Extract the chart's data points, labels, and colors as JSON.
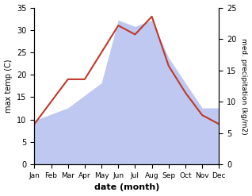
{
  "months": [
    "Jan",
    "Feb",
    "Mar",
    "Apr",
    "May",
    "Jun",
    "Jul",
    "Aug",
    "Sep",
    "Oct",
    "Nov",
    "Dec"
  ],
  "month_x": [
    1,
    2,
    3,
    4,
    5,
    6,
    7,
    8,
    9,
    10,
    11,
    12
  ],
  "temperature": [
    9,
    14,
    19,
    19,
    25,
    31,
    29,
    33,
    22,
    16,
    11,
    9
  ],
  "precipitation": [
    7,
    8,
    9,
    11,
    13,
    23,
    22,
    23,
    17,
    13,
    9,
    9
  ],
  "temp_ylim": [
    0,
    35
  ],
  "precip_ylim": [
    0,
    25
  ],
  "temp_ylabel": "max temp (C)",
  "precip_ylabel": "med. precipitation (kg/m2)",
  "xlabel": "date (month)",
  "line_color": "#c0392b",
  "fill_color": "#b3bfee",
  "fill_alpha": 0.85,
  "bg_color": "#ffffff",
  "temp_yticks": [
    0,
    5,
    10,
    15,
    20,
    25,
    30,
    35
  ],
  "precip_yticks": [
    0,
    5,
    10,
    15,
    20,
    25
  ]
}
